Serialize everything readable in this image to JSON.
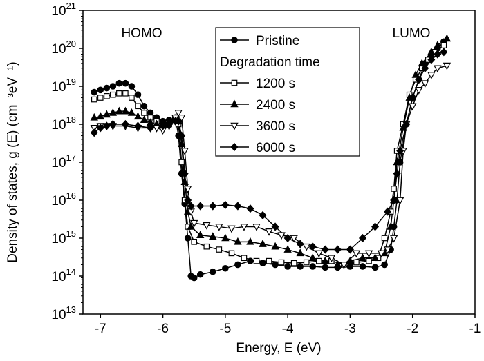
{
  "chart_data": {
    "type": "line",
    "xlabel": "Energy, E (eV)",
    "ylabel": "Density of states, g (E) (cm⁻³eV⁻¹)",
    "annotations": [
      "HOMO",
      "LUMO"
    ],
    "legend_title": "Degradation time",
    "log_y": true,
    "xlim": [
      -7.28,
      -1
    ],
    "xticks": [
      -7,
      -6,
      -5,
      -4,
      -3,
      -2,
      -1
    ],
    "ylim": [
      10000000000000.0,
      1e+21
    ],
    "yticks": [
      {
        "value": 10000000000000.0,
        "label": "10",
        "exponent": "13"
      },
      {
        "value": 100000000000000.0,
        "label": "10",
        "exponent": "14"
      },
      {
        "value": 1000000000000000.0,
        "label": "10",
        "exponent": "15"
      },
      {
        "value": 1e+16,
        "label": "10",
        "exponent": "16"
      },
      {
        "value": 1e+17,
        "label": "10",
        "exponent": "17"
      },
      {
        "value": 1e+18,
        "label": "10",
        "exponent": "18"
      },
      {
        "value": 1e+19,
        "label": "10",
        "exponent": "19"
      },
      {
        "value": 1e+20,
        "label": "10",
        "exponent": "20"
      },
      {
        "value": 1e+21,
        "label": "10",
        "exponent": "21"
      }
    ],
    "series": [
      {
        "name": "Pristine",
        "color": "#000000",
        "marker": "circle-filled",
        "x": [
          -7.1,
          -7.0,
          -6.9,
          -6.8,
          -6.7,
          -6.6,
          -6.5,
          -6.4,
          -6.3,
          -6.2,
          -6.1,
          -6.0,
          -5.9,
          -5.8,
          -5.75,
          -5.7,
          -5.65,
          -5.6,
          -5.55,
          -5.5,
          -5.4,
          -5.2,
          -5.0,
          -4.8,
          -4.6,
          -4.4,
          -4.2,
          -4.0,
          -3.8,
          -3.6,
          -3.4,
          -3.2,
          -3.0,
          -2.8,
          -2.6,
          -2.45,
          -2.35,
          -2.3,
          -2.25,
          -2.2,
          -2.1,
          -2.0,
          -1.9,
          -1.8,
          -1.7,
          -1.6,
          -1.5
        ],
        "values": [
          7e+18,
          8e+18,
          9e+18,
          1e+19,
          1.2e+19,
          1.2e+19,
          1e+19,
          6e+18,
          3e+18,
          2e+18,
          1.5e+18,
          1.2e+18,
          1.3e+18,
          1.5e+18,
          5e+17,
          5e+16,
          8000000000000000.0,
          1000000000000000.0,
          100000000000000.0,
          90000000000000.0,
          110000000000000.0,
          130000000000000.0,
          160000000000000.0,
          200000000000000.0,
          250000000000000.0,
          220000000000000.0,
          200000000000000.0,
          180000000000000.0,
          180000000000000.0,
          180000000000000.0,
          170000000000000.0,
          170000000000000.0,
          180000000000000.0,
          180000000000000.0,
          170000000000000.0,
          200000000000000.0,
          500000000000000.0,
          2000000000000000.0,
          1e+16,
          1e+17,
          1e+18,
          5e+18,
          1.5e+19,
          4e+19,
          6e+19,
          1e+20,
          1.5e+20
        ]
      },
      {
        "name": "1200 s",
        "color": "#000000",
        "marker": "square-open",
        "x": [
          -7.1,
          -7.0,
          -6.9,
          -6.8,
          -6.7,
          -6.6,
          -6.5,
          -6.4,
          -6.3,
          -6.2,
          -6.1,
          -6.0,
          -5.9,
          -5.8,
          -5.75,
          -5.7,
          -5.65,
          -5.6,
          -5.5,
          -5.3,
          -5.1,
          -4.9,
          -4.7,
          -4.5,
          -4.3,
          -4.1,
          -3.9,
          -3.7,
          -3.5,
          -3.3,
          -3.1,
          -2.9,
          -2.7,
          -2.55,
          -2.45,
          -2.35,
          -2.3,
          -2.25,
          -2.15,
          -2.05,
          -1.95,
          -1.85,
          -1.75,
          -1.65,
          -1.5
        ],
        "values": [
          4.5e+18,
          5e+18,
          5.5e+18,
          6e+18,
          6.5e+18,
          6.5e+18,
          5e+18,
          3e+18,
          2e+18,
          1.5e+18,
          1.2e+18,
          9e+17,
          1e+18,
          1.3e+18,
          1e+18,
          1e+17,
          1e+16,
          2000000000000000.0,
          800000000000000.0,
          600000000000000.0,
          500000000000000.0,
          400000000000000.0,
          300000000000000.0,
          250000000000000.0,
          250000000000000.0,
          230000000000000.0,
          220000000000000.0,
          230000000000000.0,
          250000000000000.0,
          250000000000000.0,
          200000000000000.0,
          230000000000000.0,
          250000000000000.0,
          300000000000000.0,
          1000000000000000.0,
          5000000000000000.0,
          2e+16,
          2e+17,
          1e+18,
          6e+18,
          1.5e+19,
          3e+19,
          5e+19,
          8e+19,
          1.2e+20
        ]
      },
      {
        "name": "2400 s",
        "color": "#000000",
        "marker": "triangle-up-filled",
        "x": [
          -7.1,
          -7.0,
          -6.9,
          -6.8,
          -6.7,
          -6.6,
          -6.5,
          -6.4,
          -6.3,
          -6.2,
          -6.1,
          -6.0,
          -5.9,
          -5.8,
          -5.75,
          -5.7,
          -5.65,
          -5.6,
          -5.55,
          -5.4,
          -5.2,
          -5.0,
          -4.8,
          -4.6,
          -4.4,
          -4.2,
          -4.0,
          -3.8,
          -3.6,
          -3.4,
          -3.2,
          -3.0,
          -2.8,
          -2.6,
          -2.45,
          -2.35,
          -2.3,
          -2.25,
          -2.15,
          -2.05,
          -1.95,
          -1.85,
          -1.7,
          -1.6,
          -1.45
        ],
        "values": [
          1.5e+18,
          1.6e+18,
          1.8e+18,
          2e+18,
          2.2e+18,
          2.2e+18,
          2e+18,
          1.6e+18,
          1.3e+18,
          1.1e+18,
          1e+18,
          1e+18,
          1.2e+18,
          1.4e+18,
          1.2e+18,
          3e+17,
          3e+16,
          5000000000000000.0,
          2000000000000000.0,
          1200000000000000.0,
          1100000000000000.0,
          1000000000000000.0,
          800000000000000.0,
          800000000000000.0,
          700000000000000.0,
          600000000000000.0,
          500000000000000.0,
          400000000000000.0,
          300000000000000.0,
          250000000000000.0,
          200000000000000.0,
          250000000000000.0,
          300000000000000.0,
          300000000000000.0,
          400000000000000.0,
          2000000000000000.0,
          1e+16,
          1e+17,
          8e+17,
          5e+18,
          2e+19,
          4e+19,
          8e+19,
          1.2e+20,
          1.8e+20
        ]
      },
      {
        "name": "3600 s",
        "color": "#000000",
        "marker": "triangle-down-open",
        "x": [
          -7.1,
          -7.0,
          -6.9,
          -6.8,
          -6.6,
          -6.4,
          -6.2,
          -6.1,
          -6.0,
          -5.9,
          -5.8,
          -5.75,
          -5.7,
          -5.65,
          -5.6,
          -5.55,
          -5.5,
          -5.3,
          -5.1,
          -4.9,
          -4.7,
          -4.5,
          -4.3,
          -4.1,
          -3.9,
          -3.7,
          -3.5,
          -3.3,
          -3.1,
          -2.9,
          -2.7,
          -2.5,
          -2.4,
          -2.3,
          -2.2,
          -2.15,
          -2.1,
          -2.0,
          -1.9,
          -1.8,
          -1.7,
          -1.6,
          -1.45
        ],
        "values": [
          8e+17,
          9e+17,
          9e+17,
          9e+17,
          9e+17,
          8e+17,
          8e+17,
          8e+17,
          7e+17,
          9e+17,
          1.5e+18,
          2e+18,
          1.5e+18,
          2e+17,
          2e+16,
          5000000000000000.0,
          2500000000000000.0,
          2200000000000000.0,
          2000000000000000.0,
          1800000000000000.0,
          2000000000000000.0,
          2000000000000000.0,
          1500000000000000.0,
          1200000000000000.0,
          1000000000000000.0,
          600000000000000.0,
          400000000000000.0,
          300000000000000.0,
          200000000000000.0,
          400000000000000.0,
          400000000000000.0,
          400000000000000.0,
          500000000000000.0,
          1000000000000000.0,
          1e+16,
          2e+17,
          1e+18,
          3e+18,
          8e+18,
          1.2e+19,
          2e+19,
          3e+19,
          3.5e+19
        ]
      },
      {
        "name": "6000 s",
        "color": "#000000",
        "marker": "diamond-filled",
        "x": [
          -7.1,
          -7.0,
          -6.9,
          -6.8,
          -6.6,
          -6.4,
          -6.2,
          -6.0,
          -5.9,
          -5.8,
          -5.75,
          -5.7,
          -5.65,
          -5.6,
          -5.55,
          -5.4,
          -5.2,
          -5.0,
          -4.8,
          -4.6,
          -4.4,
          -4.2,
          -4.0,
          -3.8,
          -3.6,
          -3.4,
          -3.2,
          -3.0,
          -2.8,
          -2.6,
          -2.4,
          -2.3,
          -2.25,
          -2.2,
          -2.1,
          -2.0,
          -1.9,
          -1.8,
          -1.7,
          -1.6,
          -1.5
        ],
        "values": [
          6e+17,
          8e+17,
          9e+17,
          1e+18,
          1e+18,
          9e+17,
          8e+17,
          9e+17,
          1e+18,
          1.2e+18,
          1.2e+18,
          5e+17,
          5e+16,
          1e+16,
          7000000000000000.0,
          7000000000000000.0,
          7000000000000000.0,
          7500000000000000.0,
          7000000000000000.0,
          6000000000000000.0,
          4000000000000000.0,
          2000000000000000.0,
          1000000000000000.0,
          700000000000000.0,
          600000000000000.0,
          500000000000000.0,
          500000000000000.0,
          500000000000000.0,
          1000000000000000.0,
          2000000000000000.0,
          5000000000000000.0,
          1e+16,
          5e+16,
          2e+17,
          1e+18,
          5e+18,
          1.5e+19,
          3e+19,
          5e+19,
          7e+19,
          8e+19
        ]
      }
    ]
  }
}
